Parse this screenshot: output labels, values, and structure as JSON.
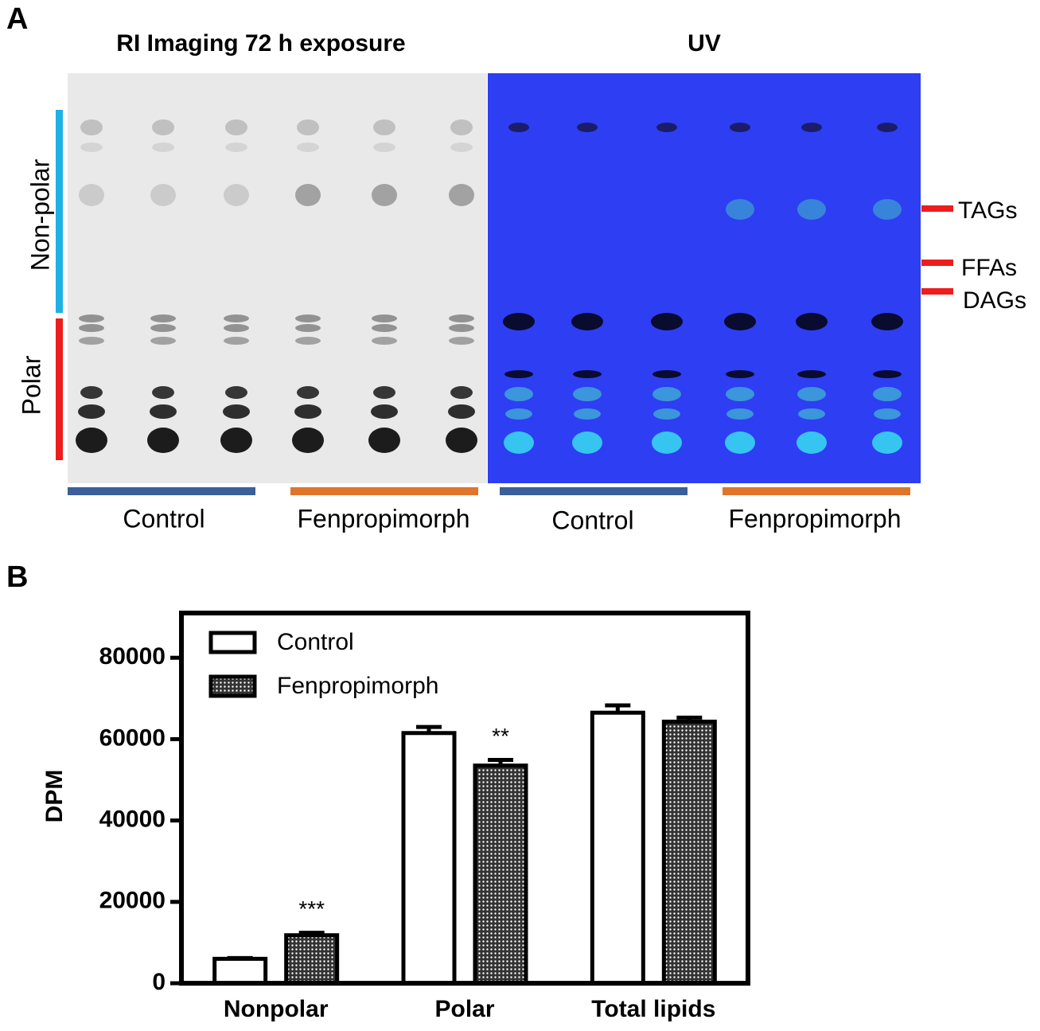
{
  "panel_a": {
    "label": "A",
    "titles": [
      "RI Imaging 72 h exposure",
      "UV"
    ],
    "side_labels": [
      "Non-polar",
      "Polar"
    ],
    "lipid_labels": [
      "TAGs",
      "FFAs",
      "DAGs"
    ],
    "group_labels": [
      "Control",
      "Fenpropimorph",
      "Control",
      "Fenpropimorph"
    ]
  },
  "panel_b": {
    "label": "B"
  },
  "chart_data": {
    "type": "bar",
    "ylabel": "DPM",
    "categories": [
      "Nonpolar",
      "Polar",
      "Total lipids"
    ],
    "series": [
      {
        "name": "Control",
        "color": "#ffffff",
        "values": [
          6000,
          61500,
          66500
        ],
        "errors": [
          200,
          1500,
          1800
        ]
      },
      {
        "name": "Fenpropimorph",
        "color": "#333333",
        "pattern": "dots",
        "values": [
          11800,
          53500,
          64300
        ],
        "errors": [
          600,
          1400,
          1000
        ],
        "annotations": [
          "***",
          "**",
          null
        ]
      }
    ],
    "ylim": [
      0,
      91000
    ],
    "yticks": [
      0,
      20000,
      40000,
      60000,
      80000
    ],
    "legend": "top-left",
    "grid": false
  }
}
